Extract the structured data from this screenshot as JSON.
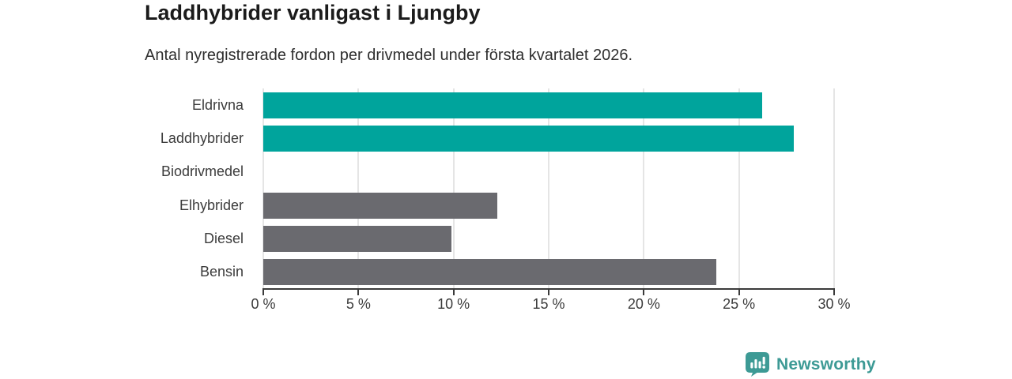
{
  "header": {
    "title": "Laddhybrider vanligast i Ljungby",
    "subtitle": "Antal nyregistrerade fordon per drivmedel under första kvartalet 2026."
  },
  "chart_data": {
    "type": "bar",
    "orientation": "horizontal",
    "title": "Laddhybrider vanligast i Ljungby",
    "subtitle": "Antal nyregistrerade fordon per drivmedel under första kvartalet 2026.",
    "categories": [
      "Eldrivna",
      "Laddhybrider",
      "Biodrivmedel",
      "Elhybrider",
      "Diesel",
      "Bensin"
    ],
    "values": [
      26.2,
      27.9,
      0,
      12.3,
      9.9,
      23.8
    ],
    "unit": "%",
    "xlabel": "",
    "ylabel": "",
    "xlim": [
      0,
      30
    ],
    "x_ticks": [
      0,
      5,
      10,
      15,
      20,
      25,
      30
    ],
    "x_tick_labels": [
      "0 %",
      "5 %",
      "10 %",
      "15 %",
      "20 %",
      "25 %",
      "30 %"
    ],
    "bar_colors": [
      "#00a49c",
      "#00a49c",
      "#6a6a6f",
      "#6a6a6f",
      "#6a6a6f",
      "#6a6a6f"
    ],
    "highlight_color": "#00a49c",
    "default_color": "#6a6a6f",
    "grid": true,
    "legend": false
  },
  "branding": {
    "logo_text": "Newsworthy",
    "logo_color": "#3d9a95",
    "logo_icon": "speech-bubble-bar-chart-icon"
  }
}
